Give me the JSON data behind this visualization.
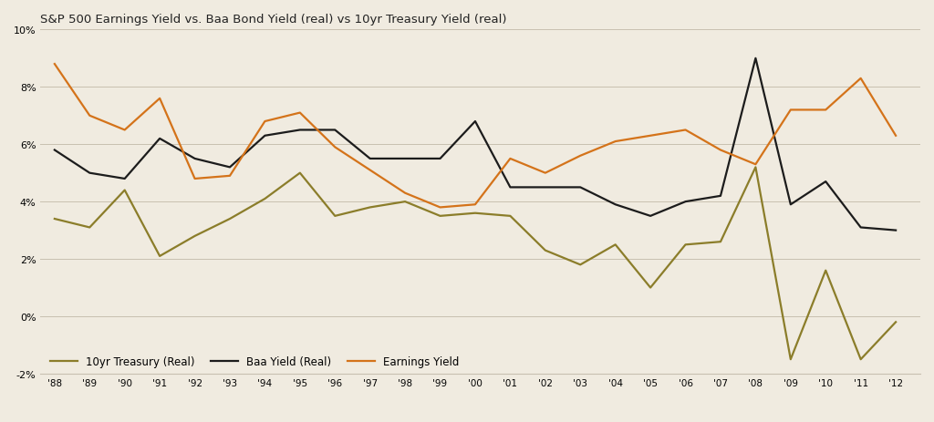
{
  "title": "S&P 500 Earnings Yield vs. Baa Bond Yield (real) vs 10yr Treasury Yield (real)",
  "background_color": "#f0ebe0",
  "years": [
    1988,
    1989,
    1990,
    1991,
    1992,
    1993,
    1994,
    1995,
    1996,
    1997,
    1998,
    1999,
    2000,
    2001,
    2002,
    2003,
    2004,
    2005,
    2006,
    2007,
    2008,
    2009,
    2010,
    2011,
    2012
  ],
  "earnings_yield": [
    8.8,
    7.0,
    6.5,
    7.6,
    4.8,
    4.9,
    6.8,
    7.1,
    5.9,
    5.1,
    4.3,
    3.8,
    3.9,
    5.5,
    5.0,
    5.6,
    6.1,
    6.3,
    6.5,
    5.8,
    5.3,
    7.2,
    7.2,
    8.3,
    6.3
  ],
  "baa_yield_real": [
    5.8,
    5.0,
    4.8,
    6.2,
    5.5,
    5.2,
    6.3,
    6.5,
    6.5,
    5.5,
    5.5,
    5.5,
    6.8,
    4.5,
    4.5,
    4.5,
    3.9,
    3.5,
    4.0,
    4.2,
    9.0,
    3.9,
    4.7,
    3.1,
    3.0
  ],
  "treasury_yield_real": [
    3.4,
    3.1,
    4.4,
    2.1,
    2.8,
    3.4,
    4.1,
    5.0,
    3.5,
    3.8,
    4.0,
    3.5,
    3.6,
    3.5,
    2.3,
    1.8,
    2.5,
    1.0,
    2.5,
    2.6,
    5.2,
    -1.5,
    1.6,
    -1.5,
    -0.2
  ],
  "earnings_color": "#d4731a",
  "baa_color": "#1c1c1c",
  "treasury_color": "#8b7d2a",
  "ylim": [
    -2,
    10
  ],
  "yticks": [
    -2,
    0,
    2,
    4,
    6,
    8,
    10
  ],
  "legend_labels": [
    "Earnings Yield",
    "Baa Yield (Real)",
    "10yr Treasury (Real)"
  ],
  "grid_color": "#c8c0b0",
  "line_width": 1.6
}
